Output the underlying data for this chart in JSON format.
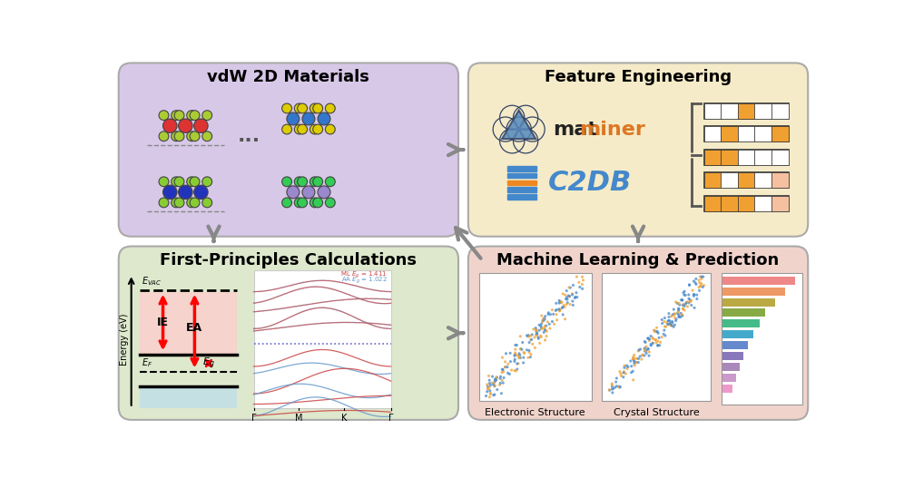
{
  "panel_bg_colors": {
    "top_left": "#d8c8e8",
    "top_right": "#f5ebc8",
    "bottom_left": "#dde8cc",
    "bottom_right": "#f0d4cc"
  },
  "panel_titles": {
    "top_left": "vdW 2D Materials",
    "top_right": "Feature Engineering",
    "bottom_left": "First-Principles Calculations",
    "bottom_right": "Machine Learning & Prediction"
  },
  "title_fontsize": 13,
  "arrow_color": "#909090",
  "text_color": "#111111",
  "c2db_color": "#4488cc",
  "orange_color": "#f0a030",
  "blue_color": "#4488cc",
  "red_color": "#dd2222",
  "label_bottom_left": "Electronic Structure",
  "label_bottom_right": "Crystal Structure",
  "bar_colors_importance": [
    "#ee8888",
    "#ee9966",
    "#bbaa44",
    "#88aa44",
    "#44bb88",
    "#44aacc",
    "#6688cc",
    "#8877bb",
    "#aa88bb",
    "#cc99cc",
    "#ee99cc"
  ],
  "bar_lengths": [
    95,
    82,
    68,
    55,
    48,
    40,
    33,
    27,
    22,
    17,
    13
  ]
}
